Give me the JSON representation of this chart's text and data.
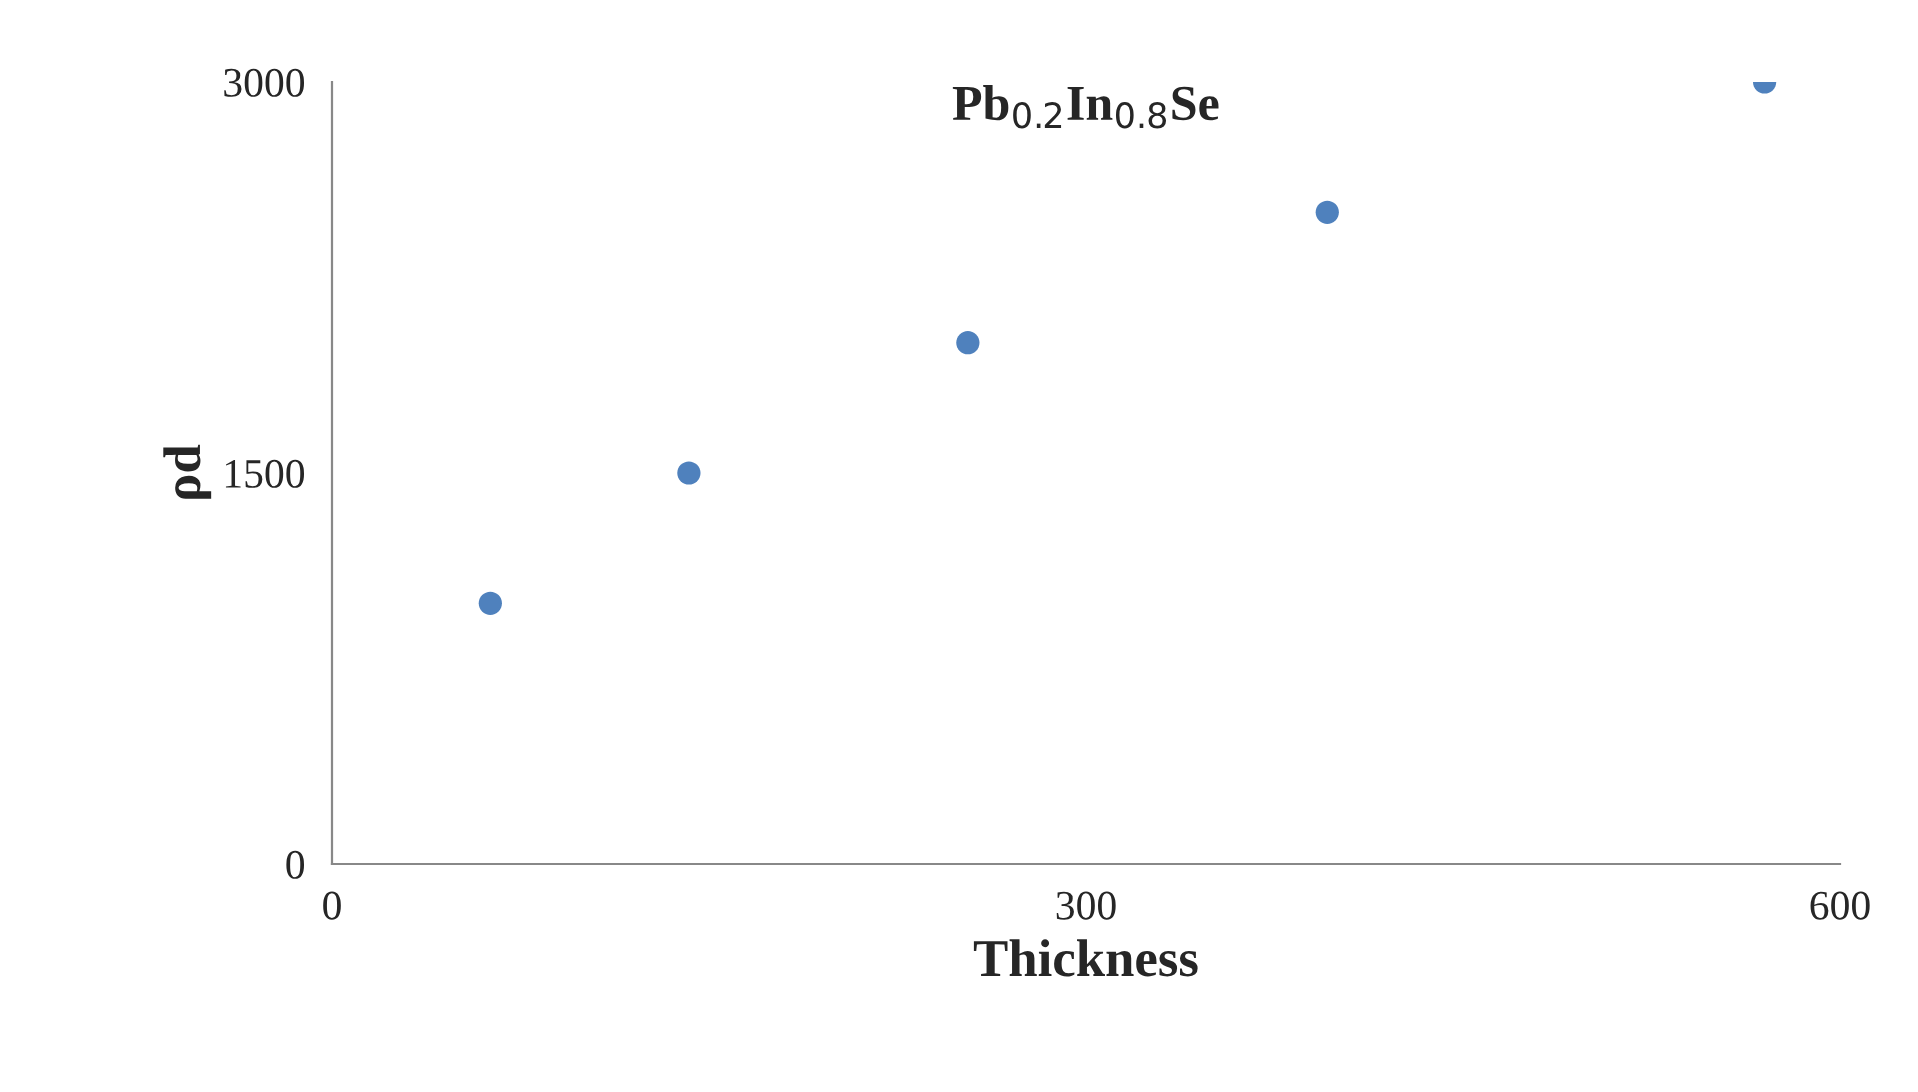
{
  "chart_data": {
    "type": "scatter",
    "title": "Pb$_{0.2}$In$_{0.8}$Se",
    "xlabel": "Thickness",
    "ylabel": "ρd",
    "x": [
      63,
      142,
      253,
      396,
      570
    ],
    "series": [
      {
        "color": "#4f81bd",
        "values": [
          1000,
          1500,
          2000,
          2500,
          3000
        ]
      }
    ],
    "xlim": [
      0,
      600
    ],
    "xticks": [
      0,
      300,
      600
    ],
    "ylim": [
      0,
      3000
    ],
    "yticks": [
      0,
      1500,
      3000
    ],
    "grid": false,
    "legend": false,
    "marker": "circle"
  }
}
